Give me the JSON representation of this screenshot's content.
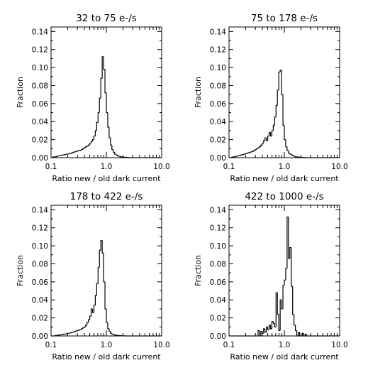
{
  "chart_data": [
    {
      "type": "histogram",
      "title": "32 to 75 e-/s",
      "xlabel": "Ratio new / old dark current",
      "ylabel": "Fraction",
      "xscale": "log",
      "xlim": [
        0.1,
        10.0
      ],
      "ylim": [
        0.0,
        0.145
      ],
      "xticks": [
        "0.1",
        "1.0",
        "10.0"
      ],
      "yticks": [
        "0.00",
        "0.02",
        "0.04",
        "0.06",
        "0.08",
        "0.10",
        "0.12",
        "0.14"
      ],
      "bin_width_log10": 0.025,
      "bins_start_log10": -1.0,
      "values": [
        0.0,
        0.0005,
        0.001,
        0.001,
        0.0015,
        0.002,
        0.002,
        0.0025,
        0.003,
        0.003,
        0.0035,
        0.004,
        0.004,
        0.0045,
        0.005,
        0.0055,
        0.006,
        0.0065,
        0.007,
        0.0075,
        0.008,
        0.008,
        0.009,
        0.01,
        0.011,
        0.012,
        0.013,
        0.014,
        0.016,
        0.018,
        0.02,
        0.024,
        0.03,
        0.039,
        0.05,
        0.066,
        0.088,
        0.112,
        0.098,
        0.072,
        0.05,
        0.034,
        0.022,
        0.014,
        0.009,
        0.006,
        0.004,
        0.003,
        0.002,
        0.0015,
        0.001,
        0.0008,
        0.0006,
        0.0005,
        0.0004,
        0.0003,
        0.0002,
        0.0001,
        0.0001,
        0.0,
        0.0,
        0.0,
        0.0,
        0.0,
        0.0,
        0.0,
        0.0,
        0.0,
        0.0,
        0.0,
        0.0,
        0.0,
        0.0,
        0.0,
        0.0,
        0.0,
        0.0,
        0.0,
        0.0,
        0.0
      ]
    },
    {
      "type": "histogram",
      "title": "75 to 178 e-/s",
      "xlabel": "Ratio new / old dark current",
      "ylabel": "Fraction",
      "xscale": "log",
      "xlim": [
        0.1,
        10.0
      ],
      "ylim": [
        0.0,
        0.145
      ],
      "xticks": [
        "0.1",
        "1.0",
        "10.0"
      ],
      "yticks": [
        "0.00",
        "0.02",
        "0.04",
        "0.06",
        "0.08",
        "0.10",
        "0.12",
        "0.14"
      ],
      "bin_width_log10": 0.025,
      "bins_start_log10": -1.0,
      "values": [
        0.0,
        0.0,
        0.0005,
        0.001,
        0.001,
        0.0015,
        0.002,
        0.002,
        0.003,
        0.003,
        0.0035,
        0.004,
        0.0045,
        0.005,
        0.0055,
        0.006,
        0.0065,
        0.007,
        0.008,
        0.009,
        0.01,
        0.011,
        0.012,
        0.014,
        0.016,
        0.019,
        0.022,
        0.019,
        0.024,
        0.028,
        0.024,
        0.03,
        0.036,
        0.045,
        0.058,
        0.075,
        0.095,
        0.097,
        0.07,
        0.036,
        0.02,
        0.012,
        0.008,
        0.005,
        0.004,
        0.003,
        0.002,
        0.0015,
        0.001,
        0.0008,
        0.0006,
        0.0005,
        0.0004,
        0.0003,
        0.0002,
        0.0001,
        0.0001,
        0.0,
        0.0,
        0.0,
        0.0,
        0.0,
        0.0,
        0.0,
        0.0,
        0.0,
        0.0,
        0.0,
        0.0,
        0.0,
        0.0,
        0.0,
        0.0,
        0.0,
        0.0,
        0.0,
        0.0,
        0.0,
        0.0,
        0.0
      ]
    },
    {
      "type": "histogram",
      "title": "178 to 422 e-/s",
      "xlabel": "Ratio new / old dark current",
      "ylabel": "Fraction",
      "xscale": "log",
      "xlim": [
        0.1,
        10.0
      ],
      "ylim": [
        0.0,
        0.145
      ],
      "xticks": [
        "0.1",
        "1.0",
        "10.0"
      ],
      "yticks": [
        "0.00",
        "0.02",
        "0.04",
        "0.06",
        "0.08",
        "0.10",
        "0.12",
        "0.14"
      ],
      "bin_width_log10": 0.025,
      "bins_start_log10": -1.0,
      "values": [
        0.0,
        0.0,
        0.0,
        0.0005,
        0.0005,
        0.001,
        0.001,
        0.0015,
        0.0015,
        0.002,
        0.002,
        0.0025,
        0.003,
        0.003,
        0.0035,
        0.004,
        0.0045,
        0.005,
        0.0055,
        0.006,
        0.0065,
        0.007,
        0.008,
        0.009,
        0.01,
        0.012,
        0.015,
        0.018,
        0.022,
        0.03,
        0.026,
        0.034,
        0.045,
        0.058,
        0.076,
        0.095,
        0.106,
        0.092,
        0.06,
        0.03,
        0.015,
        0.008,
        0.005,
        0.003,
        0.002,
        0.0015,
        0.001,
        0.0008,
        0.0006,
        0.0004,
        0.0003,
        0.0002,
        0.0001,
        0.0001,
        0.0,
        0.0,
        0.0,
        0.0,
        0.0,
        0.0,
        0.0,
        0.0,
        0.0,
        0.0,
        0.0,
        0.0,
        0.0,
        0.0,
        0.0,
        0.0,
        0.0,
        0.0,
        0.0,
        0.0,
        0.0,
        0.0,
        0.0,
        0.0,
        0.0,
        0.0
      ]
    },
    {
      "type": "histogram",
      "title": "422 to 1000 e-/s",
      "xlabel": "Ratio new / old dark current",
      "ylabel": "Fraction",
      "xscale": "log",
      "xlim": [
        0.1,
        10.0
      ],
      "ylim": [
        0.0,
        0.145
      ],
      "xticks": [
        "0.1",
        "1.0",
        "10.0"
      ],
      "yticks": [
        "0.00",
        "0.02",
        "0.04",
        "0.06",
        "0.08",
        "0.10",
        "0.12",
        "0.14"
      ],
      "bin_width_log10": 0.025,
      "bins_start_log10": -1.0,
      "values": [
        0.0,
        0.0,
        0.0,
        0.0,
        0.0,
        0.0,
        0.0,
        0.0,
        0.0,
        0.0,
        0.0,
        0.0,
        0.0,
        0.0,
        0.0,
        0.0,
        0.0,
        0.0,
        0.0,
        0.0,
        0.0,
        0.006,
        0.0,
        0.005,
        0.003,
        0.008,
        0.004,
        0.01,
        0.007,
        0.012,
        0.008,
        0.016,
        0.014,
        0.01,
        0.048,
        0.024,
        0.006,
        0.04,
        0.03,
        0.056,
        0.062,
        0.075,
        0.132,
        0.086,
        0.098,
        0.055,
        0.024,
        0.012,
        0.006,
        0.0,
        0.004,
        0.0,
        0.0,
        0.003,
        0.0,
        0.002,
        0.0,
        0.0,
        0.0,
        0.0,
        0.0,
        0.0,
        0.0,
        0.0,
        0.0,
        0.0,
        0.0,
        0.0,
        0.0,
        0.0,
        0.0,
        0.0,
        0.0,
        0.0,
        0.0,
        0.0,
        0.0,
        0.0,
        0.0,
        0.0
      ]
    }
  ]
}
